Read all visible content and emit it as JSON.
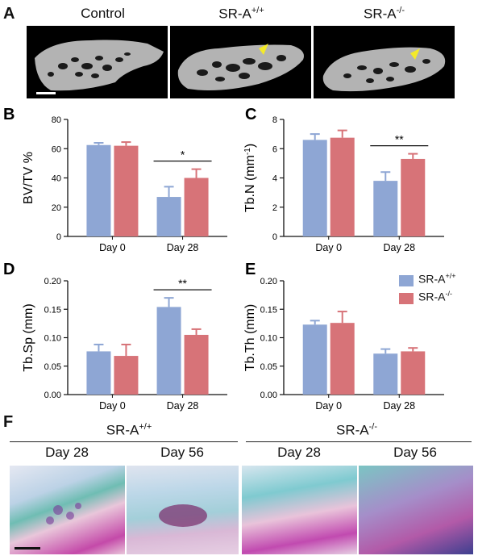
{
  "panel_A": {
    "letter": "A",
    "labels": [
      "Control",
      "SR-A",
      "SR-A"
    ],
    "superscripts": [
      "",
      "+/+",
      "-/-"
    ]
  },
  "legend": {
    "items": [
      {
        "base": "SR-A",
        "sup": "+/+",
        "color": "#8ea6d4"
      },
      {
        "base": "SR-A",
        "sup": "-/-",
        "color": "#d77378"
      }
    ]
  },
  "colors": {
    "wt": "#8ea6d4",
    "ko": "#d77378",
    "bone": "#b3b3b3",
    "sig_marker": "#f4ea2a"
  },
  "chart_data": [
    {
      "letter": "B",
      "type": "bar",
      "categories": [
        "Day 0",
        "Day 28"
      ],
      "ylabel": "BV/TV %",
      "ylim": [
        0,
        80
      ],
      "yticks": [
        "0",
        "20",
        "40",
        "60",
        "80"
      ],
      "series": [
        {
          "name": "SR-A+/+",
          "values": [
            62.5,
            27
          ],
          "errors": [
            1.5,
            7
          ]
        },
        {
          "name": "SR-A-/-",
          "values": [
            62,
            40
          ],
          "errors": [
            2.5,
            6
          ]
        }
      ],
      "significance": {
        "category": "Day 28",
        "label": "*"
      }
    },
    {
      "letter": "C",
      "type": "bar",
      "categories": [
        "Day 0",
        "Day 28"
      ],
      "ylabel": "Tb.N (mm",
      "ylabel_sup": "-1",
      "ylabel_suffix": ")",
      "ylim": [
        0,
        8
      ],
      "yticks": [
        "0",
        "2",
        "4",
        "6",
        "8"
      ],
      "series": [
        {
          "name": "SR-A+/+",
          "values": [
            6.6,
            3.8
          ],
          "errors": [
            0.4,
            0.6
          ]
        },
        {
          "name": "SR-A-/-",
          "values": [
            6.75,
            5.3
          ],
          "errors": [
            0.5,
            0.35
          ]
        }
      ],
      "significance": {
        "category": "Day 28",
        "label": "**"
      }
    },
    {
      "letter": "D",
      "type": "bar",
      "categories": [
        "Day 0",
        "Day 28"
      ],
      "ylabel": "Tb.Sp (mm)",
      "ylim": [
        0,
        0.2
      ],
      "yticks": [
        "0.00",
        "0.05",
        "0.10",
        "0.15",
        "0.20"
      ],
      "series": [
        {
          "name": "SR-A+/+",
          "values": [
            0.076,
            0.154
          ],
          "errors": [
            0.012,
            0.016
          ]
        },
        {
          "name": "SR-A-/-",
          "values": [
            0.068,
            0.105
          ],
          "errors": [
            0.02,
            0.01
          ]
        }
      ],
      "significance": {
        "category": "Day 28",
        "label": "**"
      }
    },
    {
      "letter": "E",
      "type": "bar",
      "categories": [
        "Day 0",
        "Day 28"
      ],
      "ylabel": "Tb.Th (mm)",
      "ylim": [
        0,
        0.2
      ],
      "yticks": [
        "0.00",
        "0.05",
        "0.10",
        "0.15",
        "0.20"
      ],
      "series": [
        {
          "name": "SR-A+/+",
          "values": [
            0.123,
            0.072
          ],
          "errors": [
            0.007,
            0.008
          ]
        },
        {
          "name": "SR-A-/-",
          "values": [
            0.126,
            0.076
          ],
          "errors": [
            0.02,
            0.006
          ]
        }
      ],
      "significance": null
    }
  ],
  "panel_F": {
    "letter": "F",
    "groups": [
      {
        "base": "SR-A",
        "sup": "+/+",
        "days": [
          "Day 28",
          "Day 56"
        ]
      },
      {
        "base": "SR-A",
        "sup": "-/-",
        "days": [
          "Day 28",
          "Day 56"
        ]
      }
    ]
  }
}
